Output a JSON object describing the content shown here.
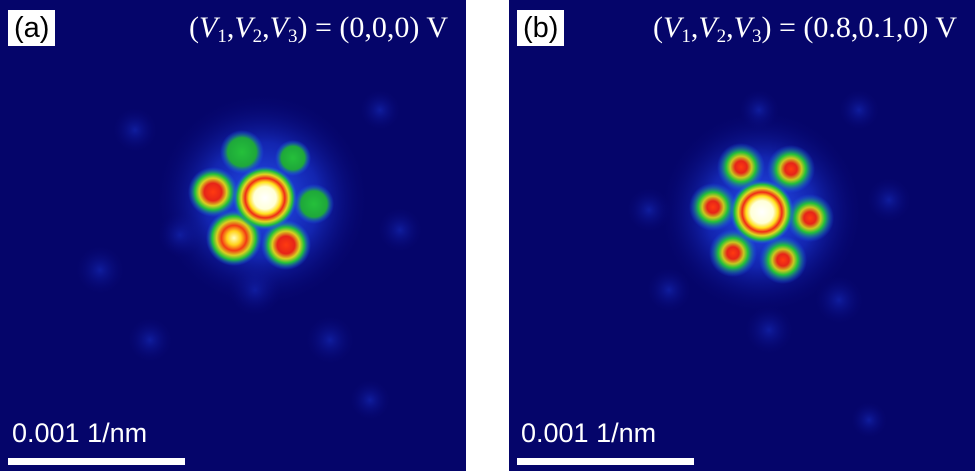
{
  "panels": [
    {
      "tag": "(a)",
      "vars": [
        "V",
        "1",
        "V",
        "2",
        "V",
        "3"
      ],
      "value_text": " = (0,0,0) V",
      "scale_label": "0.001 1/nm"
    },
    {
      "tag": "(b)",
      "vars": [
        "V",
        "1",
        "V",
        "2",
        "V",
        "3"
      ],
      "value_text": " = (0.8,0.1,0) V",
      "scale_label": "0.001 1/nm"
    }
  ],
  "colors": {
    "background": "#05056a",
    "blue_halo": "#1e4bff",
    "green_ring": "#22c83a",
    "red_core": "#e8261e",
    "yellow_ring": "#ffe21a",
    "white_core": "#ffffff"
  }
}
